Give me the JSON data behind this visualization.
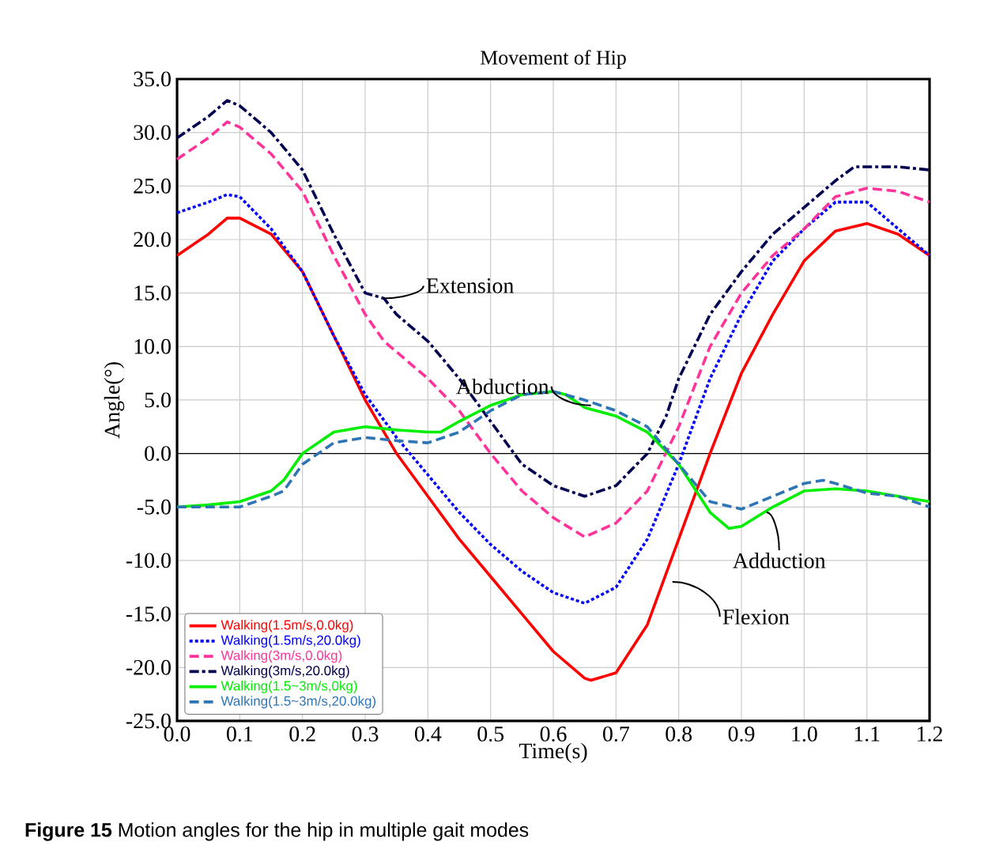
{
  "chart_data": {
    "type": "line",
    "title": "Movement of Hip",
    "xlabel": "Time(s)",
    "ylabel": "Angle(°)",
    "xlim": [
      0,
      1.2
    ],
    "ylim": [
      -25,
      35
    ],
    "xticks": [
      {
        "value": 0,
        "label": "0.0"
      },
      {
        "value": 0.1,
        "label": "0.1"
      },
      {
        "value": 0.2,
        "label": "0.2"
      },
      {
        "value": 0.3,
        "label": "0.3"
      },
      {
        "value": 0.4,
        "label": "0.4"
      },
      {
        "value": 0.5,
        "label": "0.5"
      },
      {
        "value": 0.6,
        "label": "0.6"
      },
      {
        "value": 0.7,
        "label": "0.7"
      },
      {
        "value": 0.8,
        "label": "0.8"
      },
      {
        "value": 0.9,
        "label": "0.9"
      },
      {
        "value": 1.0,
        "label": "1.0"
      },
      {
        "value": 1.1,
        "label": "1.1"
      },
      {
        "value": 1.2,
        "label": "1.2"
      }
    ],
    "yticks": [
      {
        "value": -25,
        "label": "-25.0"
      },
      {
        "value": -20,
        "label": "-20.0"
      },
      {
        "value": -15,
        "label": "-15.0"
      },
      {
        "value": -10,
        "label": "-10.0"
      },
      {
        "value": -5,
        "label": "-5.0"
      },
      {
        "value": 0,
        "label": "0.0"
      },
      {
        "value": 5,
        "label": "5.0"
      },
      {
        "value": 10,
        "label": "10.0"
      },
      {
        "value": 15,
        "label": "15.0"
      },
      {
        "value": 20,
        "label": "20.0"
      },
      {
        "value": 25,
        "label": "25.0"
      },
      {
        "value": 30,
        "label": "30.0"
      },
      {
        "value": 35,
        "label": "35.0"
      }
    ],
    "grid": true,
    "legend": "bottom left",
    "marker": "none",
    "ref_lines": [
      {
        "axis": "y",
        "value": 0,
        "color": "#000000"
      }
    ],
    "annotations": [
      {
        "text": "Extension",
        "x": 0.33,
        "y": 14.5
      },
      {
        "text": "Abduction",
        "x": 0.66,
        "y": 4.5
      },
      {
        "text": "Adduction",
        "x": 0.94,
        "y": -5.5
      },
      {
        "text": "Flexion",
        "x": 0.79,
        "y": -12
      },
      "**Figure 15**  Motion angles for the hip in multiple gait modes"
    ],
    "series": [
      {
        "name": "Walking(1.5m/s,0.0kg)",
        "color": "#ff0000",
        "line_style": "solid",
        "x": [
          0,
          0.05,
          0.08,
          0.1,
          0.15,
          0.2,
          0.25,
          0.3,
          0.35,
          0.4,
          0.45,
          0.5,
          0.55,
          0.6,
          0.65,
          0.66,
          0.7,
          0.75,
          0.8,
          0.85,
          0.9,
          0.95,
          1.0,
          1.05,
          1.1,
          1.15,
          1.2
        ],
        "values": [
          18.5,
          20.5,
          22,
          22,
          20.5,
          17,
          11,
          5,
          0,
          -4,
          -8,
          -11.5,
          -15,
          -18.5,
          -21,
          -21.2,
          -20.5,
          -16,
          -8,
          0,
          7.5,
          13,
          18,
          20.8,
          21.5,
          20.5,
          18.5
        ]
      },
      {
        "name": "Walking(1.5m/s,20.0kg)",
        "color": "#0000ff",
        "line_style": "dotted",
        "x": [
          0,
          0.05,
          0.08,
          0.1,
          0.15,
          0.2,
          0.25,
          0.3,
          0.35,
          0.4,
          0.45,
          0.5,
          0.55,
          0.6,
          0.65,
          0.7,
          0.75,
          0.8,
          0.85,
          0.9,
          0.95,
          1.0,
          1.05,
          1.1,
          1.15,
          1.2
        ],
        "values": [
          22.5,
          23.5,
          24.2,
          24,
          21,
          17,
          11,
          5.5,
          1.5,
          -2,
          -5.5,
          -8.5,
          -11,
          -13,
          -14,
          -12.5,
          -8,
          -1,
          7,
          13,
          18,
          21,
          23.5,
          23.5,
          21,
          18.5
        ]
      },
      {
        "name": "Walking(3m/s,0.0kg)",
        "color": "#ff3399",
        "line_style": "dashed",
        "x": [
          0,
          0.05,
          0.08,
          0.1,
          0.15,
          0.2,
          0.25,
          0.3,
          0.33,
          0.35,
          0.4,
          0.45,
          0.5,
          0.55,
          0.6,
          0.65,
          0.7,
          0.75,
          0.8,
          0.85,
          0.9,
          0.95,
          1.0,
          1.05,
          1.1,
          1.15,
          1.2
        ],
        "values": [
          27.5,
          29.5,
          31,
          30.5,
          28,
          24.5,
          18.5,
          13,
          10.5,
          9.5,
          7,
          4,
          0,
          -3.5,
          -6,
          -7.8,
          -6.5,
          -3.5,
          2.5,
          10,
          15,
          18.5,
          21,
          24,
          24.8,
          24.5,
          23.5
        ]
      },
      {
        "name": "Walking(3m/s,20.0kg)",
        "color": "#000050",
        "line_style": "dashdot",
        "x": [
          0,
          0.05,
          0.08,
          0.1,
          0.15,
          0.2,
          0.25,
          0.3,
          0.33,
          0.35,
          0.4,
          0.45,
          0.5,
          0.55,
          0.6,
          0.65,
          0.7,
          0.75,
          0.78,
          0.8,
          0.85,
          0.9,
          0.95,
          1.0,
          1.05,
          1.08,
          1.1,
          1.15,
          1.2
        ],
        "values": [
          29.5,
          31.5,
          33,
          32.5,
          30,
          26.5,
          20.5,
          15,
          14.5,
          13,
          10.5,
          7,
          3,
          -1,
          -3,
          -4,
          -3,
          0,
          3.5,
          7,
          13,
          17,
          20.5,
          23,
          25.5,
          26.8,
          26.8,
          26.8,
          26.5
        ]
      },
      {
        "name": "Walking(1.5~3m/s,0kg)",
        "color": "#00ee00",
        "line_style": "solid",
        "x": [
          0,
          0.05,
          0.1,
          0.15,
          0.17,
          0.2,
          0.25,
          0.3,
          0.35,
          0.4,
          0.42,
          0.45,
          0.5,
          0.55,
          0.6,
          0.62,
          0.65,
          0.7,
          0.75,
          0.8,
          0.85,
          0.88,
          0.9,
          0.95,
          1.0,
          1.05,
          1.1,
          1.15,
          1.2
        ],
        "values": [
          -5,
          -4.8,
          -4.5,
          -3.5,
          -2.5,
          0,
          2,
          2.5,
          2.2,
          2,
          2,
          3,
          4.5,
          5.5,
          5.8,
          5.5,
          4.3,
          3.5,
          2,
          -1,
          -5.5,
          -7,
          -6.8,
          -5,
          -3.5,
          -3.3,
          -3.5,
          -4,
          -4.5
        ]
      },
      {
        "name": "Walking(1.5~3m/s,20.0kg)",
        "color": "#2e75b6",
        "line_style": "dashed",
        "x": [
          0,
          0.05,
          0.1,
          0.15,
          0.17,
          0.2,
          0.25,
          0.3,
          0.35,
          0.4,
          0.45,
          0.5,
          0.55,
          0.6,
          0.65,
          0.7,
          0.75,
          0.8,
          0.85,
          0.9,
          0.95,
          1.0,
          1.03,
          1.05,
          1.1,
          1.15,
          1.2
        ],
        "values": [
          -5,
          -5,
          -5,
          -4,
          -3.5,
          -1,
          1,
          1.5,
          1.2,
          1,
          2,
          4,
          5.5,
          5.8,
          5,
          4,
          2.5,
          -1,
          -4.5,
          -5.2,
          -4,
          -2.8,
          -2.5,
          -2.8,
          -3.7,
          -4,
          -5
        ]
      }
    ]
  }
}
